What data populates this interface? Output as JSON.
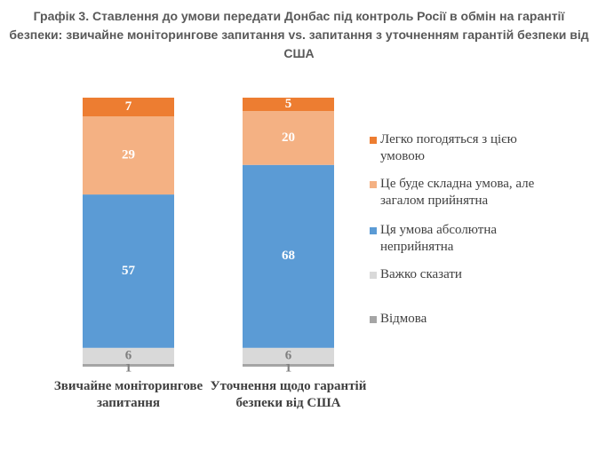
{
  "chart_data": {
    "type": "stacked_bar",
    "title": "Графік 3. Ставлення до умови передати Донбас під контроль Росії в обмін на гарантії безпеки: звичайне моніторингове запитання vs. запитання з уточненням гарантій безпеки від США",
    "categories": [
      "Звичайне моніторингове запитання",
      "Уточнення щодо гарантій безпеки від США"
    ],
    "series": [
      {
        "name": "Легко погодяться з цією умовою",
        "color": "#ED7D31",
        "values": [
          7,
          5
        ]
      },
      {
        "name": "Це буде складна умова, але загалом прийнятна",
        "color": "#F4B183",
        "values": [
          29,
          20
        ]
      },
      {
        "name": "Ця умова абсолютна неприйнятна",
        "color": "#5B9BD5",
        "values": [
          57,
          68
        ]
      },
      {
        "name": "Важко сказати",
        "color": "#D9D9D9",
        "values": [
          6,
          6
        ]
      },
      {
        "name": "Відмова",
        "color": "#A5A5A5",
        "values": [
          1,
          1
        ]
      }
    ]
  }
}
